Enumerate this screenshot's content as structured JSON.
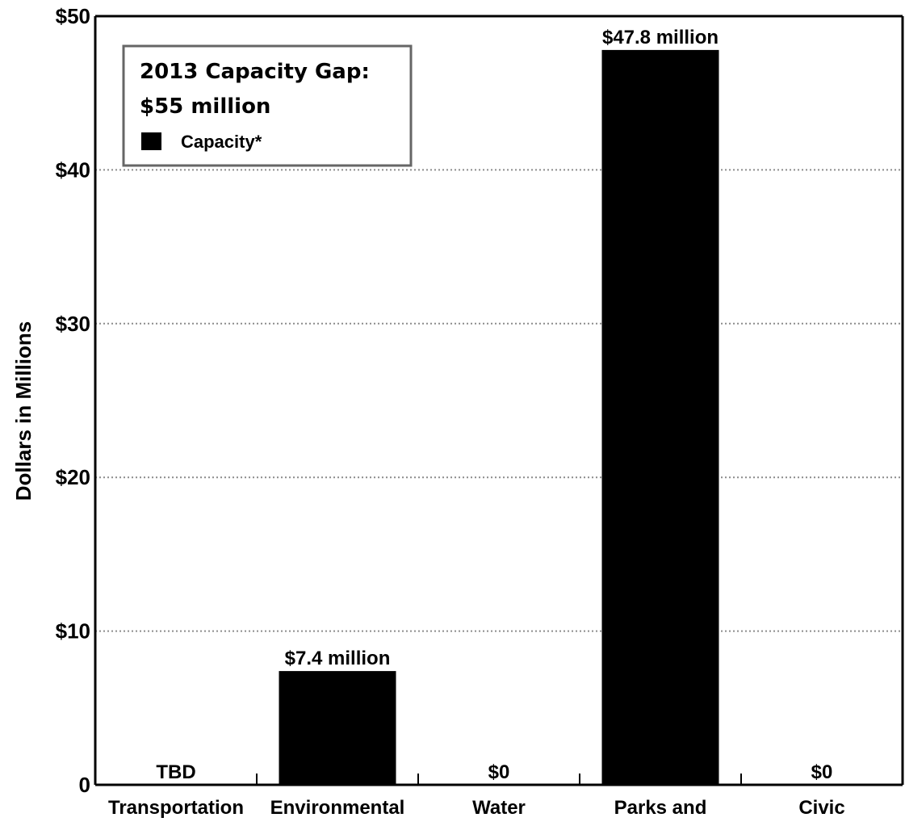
{
  "chart_data": {
    "type": "bar",
    "categories": [
      "Transportation",
      "Environmental",
      "Water",
      "Parks and",
      "Civic"
    ],
    "values": [
      null,
      7.4,
      0,
      47.8,
      0
    ],
    "data_labels": [
      "TBD",
      "$7.4 million",
      "$0",
      "$47.8 million",
      "$0"
    ],
    "ylabel": "Dollars in Millions",
    "ylim": [
      0,
      50
    ],
    "yticks": [
      0,
      10,
      20,
      30,
      40,
      50
    ],
    "ytick_labels": [
      "0",
      "$10",
      "$20",
      "$30",
      "$40",
      "$50"
    ],
    "grid": true,
    "legend": {
      "position": "top-left",
      "title_lines": [
        "2013 Capacity Gap:",
        "$55 million"
      ],
      "items": [
        {
          "label": "Capacity*",
          "color": "#000000"
        }
      ]
    },
    "colors": {
      "bar": "#000000",
      "grid": "#8c8c8c",
      "legend_border": "#666666"
    }
  }
}
